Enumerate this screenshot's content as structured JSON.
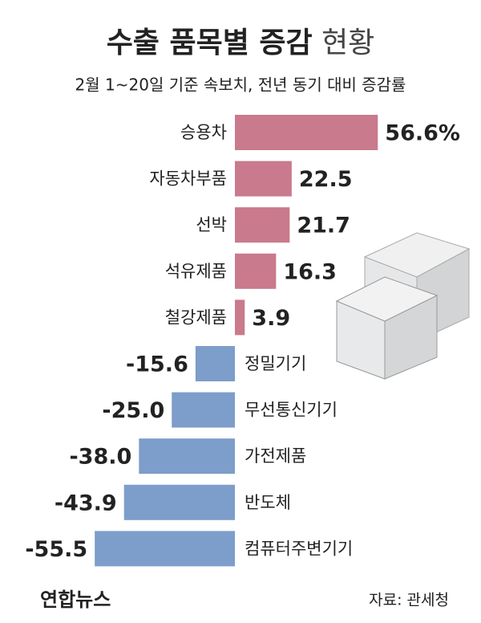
{
  "chart_data": {
    "type": "diverging-bar",
    "title": "수출 품목별 증감",
    "title_suffix": "현황",
    "subtitle": "2월 1~20일 기준 속보치, 전년 동기 대비 증감률",
    "categories": [
      "승용차",
      "자동차부품",
      "선박",
      "석유제품",
      "철강제품",
      "정밀기기",
      "무선통신기기",
      "가전제품",
      "반도체",
      "컴퓨터주변기기"
    ],
    "values": [
      56.6,
      22.5,
      21.7,
      16.3,
      3.9,
      -15.6,
      -25.0,
      -38.0,
      -43.9,
      -55.5
    ],
    "value_labels": [
      "56.6%",
      "22.5",
      "21.7",
      "16.3",
      "3.9",
      "-15.6",
      "-25.0",
      "-38.0",
      "-43.9",
      "-55.5"
    ],
    "positive_color": "#c97a8c",
    "negative_color": "#7d9dca",
    "source": "자료: 관세청"
  },
  "footer": {
    "logo": "연합뉴스"
  }
}
